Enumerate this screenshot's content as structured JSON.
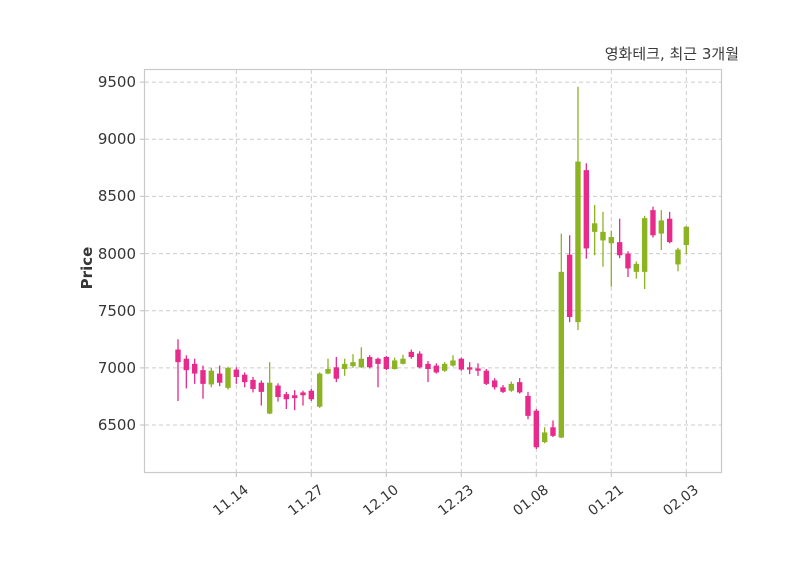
{
  "title": "영화테크, 최근 3개월",
  "y_axis": {
    "label": "Price",
    "ticks": [
      "6500",
      "7000",
      "7500",
      "8000",
      "8500",
      "9000",
      "9500"
    ]
  },
  "x_axis": {
    "ticks": [
      "11.14",
      "11.27",
      "12.10",
      "12.23",
      "01.08",
      "01.21",
      "02.03"
    ]
  },
  "colors": {
    "up": "#8cb322",
    "down": "#e72a8b",
    "grid": "#cccccc",
    "plot_border": "#c9c9c9",
    "text": "#363636",
    "background": "#ffffff"
  },
  "chart_data": {
    "type": "candlestick",
    "title": "영화테크, 최근 3개월",
    "xlabel": "",
    "ylabel": "Price",
    "ylim": [
      6080,
      9615
    ],
    "y_ticks": [
      6500,
      7000,
      7500,
      8000,
      8500,
      9000,
      9500
    ],
    "grid": true,
    "legend": "none",
    "up_color": "#8cb322",
    "down_color": "#e72a8b",
    "x_tick_labels": [
      "11.14",
      "11.27",
      "12.10",
      "12.23",
      "01.08",
      "01.21",
      "02.03"
    ],
    "x_tick_candle_indices": [
      7,
      16,
      25,
      34,
      43,
      52,
      61
    ],
    "candles_format": [
      "open",
      "high",
      "low",
      "close"
    ],
    "candles": [
      [
        7160,
        7250,
        6710,
        7050
      ],
      [
        7080,
        7110,
        6820,
        6980
      ],
      [
        7035,
        7080,
        6860,
        6950
      ],
      [
        6980,
        7020,
        6730,
        6860
      ],
      [
        6855,
        7000,
        6830,
        6975
      ],
      [
        6950,
        7020,
        6840,
        6870
      ],
      [
        6825,
        7010,
        6810,
        7000
      ],
      [
        6985,
        7005,
        6860,
        6920
      ],
      [
        6940,
        6960,
        6830,
        6875
      ],
      [
        6895,
        6920,
        6785,
        6815
      ],
      [
        6870,
        6890,
        6670,
        6790
      ],
      [
        6600,
        7050,
        6595,
        6870
      ],
      [
        6845,
        6865,
        6705,
        6745
      ],
      [
        6770,
        6790,
        6640,
        6725
      ],
      [
        6760,
        6805,
        6630,
        6735
      ],
      [
        6785,
        6800,
        6670,
        6760
      ],
      [
        6800,
        6815,
        6710,
        6725
      ],
      [
        6660,
        6960,
        6650,
        6950
      ],
      [
        6950,
        7080,
        6945,
        6990
      ],
      [
        7005,
        7095,
        6875,
        6905
      ],
      [
        6990,
        7080,
        6930,
        7035
      ],
      [
        7015,
        7120,
        7000,
        7050
      ],
      [
        7005,
        7180,
        7000,
        7080
      ],
      [
        7095,
        7110,
        6995,
        7005
      ],
      [
        7080,
        7090,
        6830,
        7035
      ],
      [
        7095,
        7105,
        6980,
        6990
      ],
      [
        6990,
        7090,
        6985,
        7065
      ],
      [
        7035,
        7115,
        7030,
        7080
      ],
      [
        7140,
        7160,
        7080,
        7095
      ],
      [
        7125,
        7145,
        6995,
        7005
      ],
      [
        7035,
        7060,
        6875,
        6990
      ],
      [
        7020,
        7040,
        6950,
        6960
      ],
      [
        6975,
        7050,
        6965,
        7035
      ],
      [
        7020,
        7110,
        7010,
        7065
      ],
      [
        7080,
        7090,
        6975,
        6985
      ],
      [
        7005,
        7050,
        6945,
        6985
      ],
      [
        6995,
        7040,
        6930,
        6975
      ],
      [
        6975,
        6990,
        6850,
        6860
      ],
      [
        6890,
        6910,
        6810,
        6830
      ],
      [
        6830,
        6850,
        6780,
        6790
      ],
      [
        6800,
        6880,
        6790,
        6860
      ],
      [
        6875,
        6910,
        6775,
        6785
      ],
      [
        6755,
        6790,
        6550,
        6580
      ],
      [
        6625,
        6640,
        6290,
        6305
      ],
      [
        6350,
        6480,
        6340,
        6435
      ],
      [
        6480,
        6540,
        6395,
        6405
      ],
      [
        6390,
        8175,
        6385,
        7840
      ],
      [
        7990,
        8160,
        7400,
        7445
      ],
      [
        7400,
        9460,
        7330,
        8805
      ],
      [
        8730,
        8790,
        7955,
        8045
      ],
      [
        8190,
        8425,
        7985,
        8265
      ],
      [
        8115,
        8365,
        7885,
        8190
      ],
      [
        8090,
        8200,
        7710,
        8145
      ],
      [
        8100,
        8305,
        7960,
        7985
      ],
      [
        8000,
        8020,
        7795,
        7870
      ],
      [
        7840,
        7930,
        7780,
        7910
      ],
      [
        7840,
        8330,
        7690,
        8310
      ],
      [
        8380,
        8410,
        8140,
        8160
      ],
      [
        8175,
        8380,
        8030,
        8290
      ],
      [
        8305,
        8365,
        8090,
        8100
      ],
      [
        7905,
        8050,
        7845,
        8035
      ],
      [
        8075,
        8240,
        7995,
        8235
      ]
    ]
  }
}
